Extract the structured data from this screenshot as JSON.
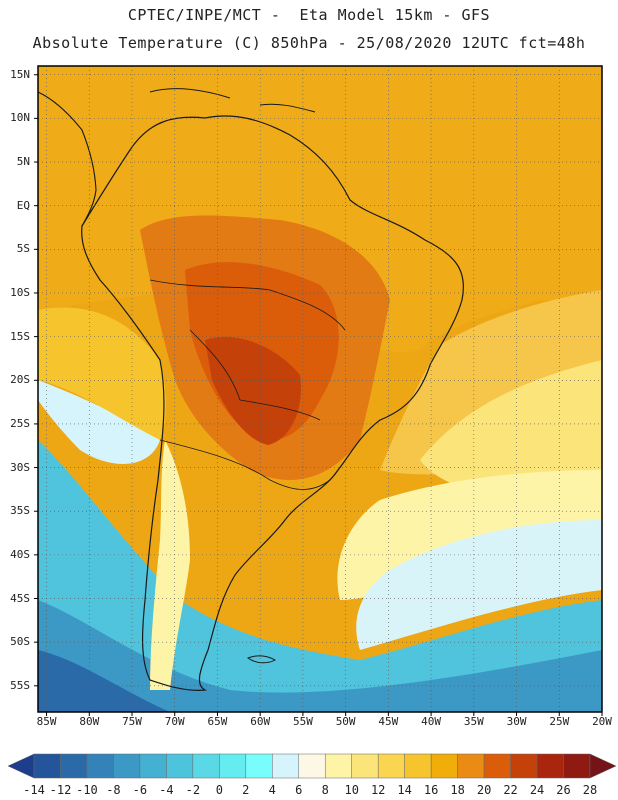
{
  "header": {
    "line1": "CPTEC/INPE/MCT -  Eta Model 15km - GFS",
    "line2": "Absolute Temperature (C) 850hPa - 25/08/2020 12UTC fct=48h"
  },
  "map": {
    "lat_labels": [
      "15N",
      "10N",
      "5N",
      "EQ",
      "5S",
      "10S",
      "15S",
      "20S",
      "25S",
      "30S",
      "35S",
      "40S",
      "45S",
      "50S",
      "55S"
    ],
    "lon_labels": [
      "85W",
      "80W",
      "75W",
      "70W",
      "65W",
      "60W",
      "55W",
      "50W",
      "45W",
      "40W",
      "35W",
      "30W",
      "25W",
      "20W"
    ],
    "lat_range": [
      -58,
      16
    ],
    "lon_range": [
      -86,
      -20
    ]
  },
  "colorbar": {
    "levels": [
      "-14",
      "-12",
      "-10",
      "-8",
      "-6",
      "-4",
      "-2",
      "0",
      "2",
      "4",
      "6",
      "8",
      "10",
      "12",
      "14",
      "16",
      "18",
      "20",
      "22",
      "24",
      "26",
      "28"
    ],
    "colors": [
      "#1d3e8a",
      "#24549a",
      "#2b6aa8",
      "#3383b8",
      "#3c98c4",
      "#44b0d2",
      "#4ec4dc",
      "#5ad8e6",
      "#64ecf0",
      "#78fcfc",
      "#d6f4fb",
      "#fdf8e6",
      "#fdf4a8",
      "#fbe47a",
      "#f9d550",
      "#f6c52d",
      "#f1ad0a",
      "#ea8c13",
      "#dc5d09",
      "#c5410a",
      "#a9250d",
      "#8e1a11",
      "#751418"
    ]
  },
  "colors": {
    "sea_north": "#eda612",
    "land_hot": "#e27b14",
    "land_core": "#c84a0c",
    "south_cold": "#46b6d2",
    "coast": "#1a1a1a"
  }
}
